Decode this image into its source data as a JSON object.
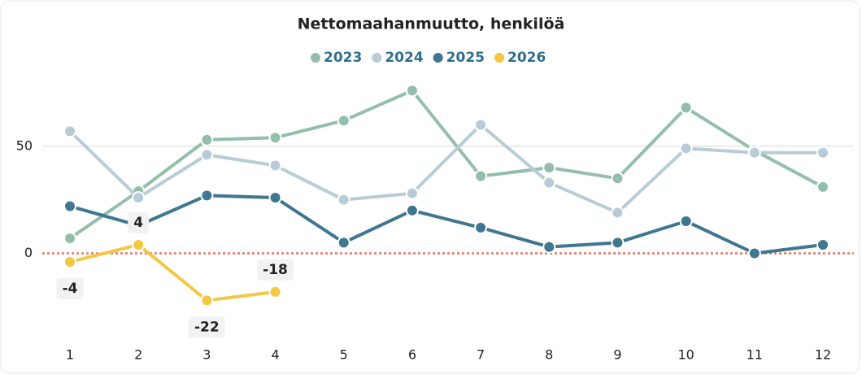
{
  "chart_data": {
    "type": "line",
    "title": "Nettomaahanmuutto, henkilöä",
    "categories": [
      "1",
      "2",
      "3",
      "4",
      "5",
      "6",
      "7",
      "8",
      "9",
      "10",
      "11",
      "12"
    ],
    "series": [
      {
        "name": "2023",
        "color": "#93bfaa",
        "values": [
          7,
          29,
          53,
          54,
          62,
          76,
          36,
          40,
          35,
          68,
          48,
          31
        ]
      },
      {
        "name": "2024",
        "color": "#b7ccd6",
        "values": [
          57,
          26,
          46,
          41,
          25,
          28,
          60,
          33,
          19,
          49,
          47,
          47
        ]
      },
      {
        "name": "2025",
        "color": "#3f7690",
        "values": [
          22,
          13,
          27,
          26,
          5,
          20,
          12,
          3,
          5,
          15,
          0,
          4
        ]
      },
      {
        "name": "2026",
        "color": "#f2c744",
        "values": [
          -4,
          4,
          -22,
          -18,
          null,
          null,
          null,
          null,
          null,
          null,
          null,
          null
        ],
        "data_labels": true
      }
    ],
    "ylim": [
      -45,
      86
    ],
    "yticks": [
      0,
      50
    ],
    "grid": true,
    "zero_line_color": "#e8735f"
  }
}
